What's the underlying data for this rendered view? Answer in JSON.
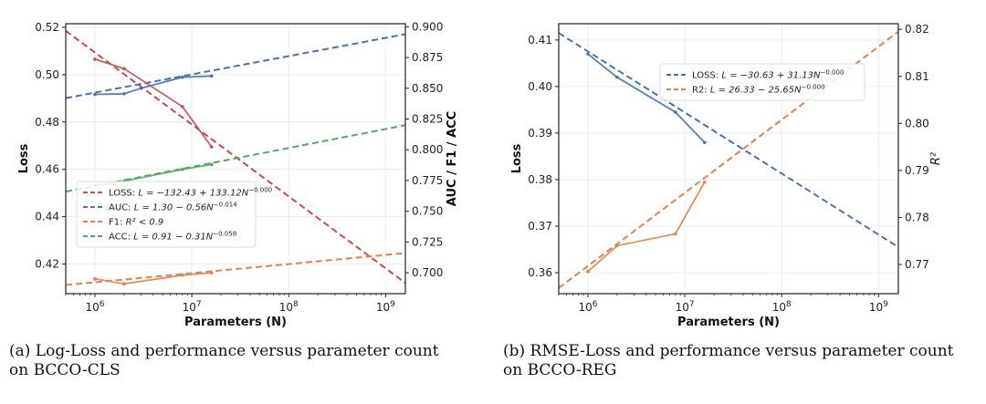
{
  "colors": {
    "red": "#c44e52",
    "blue": "#4c72b0",
    "orange": "#dd8452",
    "green": "#55a868",
    "axis": "#222222",
    "grid": "#ececec"
  },
  "captions": {
    "a_line1": "(a) Log-Loss and performance versus parameter count",
    "a_line2": "on BCCO-CLS",
    "b_line1": "(b) RMSE-Loss and performance versus parameter count",
    "b_line2": "on BCCO-REG"
  },
  "chart_data": [
    {
      "type": "line",
      "xlabel": "Parameters (N)",
      "ylabel_left": "Loss",
      "ylabel_right": "AUC / F1 / ACC",
      "xscale": "log",
      "xlim": [
        500000,
        1600000000
      ],
      "ylim_left": [
        0.4075,
        0.5215
      ],
      "ylim_right": [
        0.683,
        0.9025
      ],
      "x_ticks": [
        {
          "value": 1000000,
          "base": "10",
          "exp": "6"
        },
        {
          "value": 10000000,
          "base": "10",
          "exp": "7"
        },
        {
          "value": 100000000,
          "base": "10",
          "exp": "8"
        },
        {
          "value": 1000000000,
          "base": "10",
          "exp": "9"
        }
      ],
      "y_ticks_left": [
        "0.42",
        "0.44",
        "0.46",
        "0.48",
        "0.50",
        "0.52"
      ],
      "y_ticks_right": [
        "0.700",
        "0.725",
        "0.750",
        "0.775",
        "0.800",
        "0.825",
        "0.850",
        "0.875",
        "0.900"
      ],
      "legend_position": "center-left",
      "series": [
        {
          "name": "LOSS",
          "axis": "left",
          "color": "red",
          "x": [
            1000000,
            2000000,
            8000000,
            16000000
          ],
          "y": [
            0.5065,
            0.5025,
            0.4865,
            0.4695
          ],
          "fit": {
            "x0": 500000,
            "y0": 0.5185,
            "x1": 1600000000,
            "y1": 0.412
          },
          "legend_lhs": "LOSS: ",
          "legend_formula": "L = −132.43 + 133.12N",
          "legend_sup": "−0.000"
        },
        {
          "name": "AUC",
          "axis": "right",
          "color": "blue",
          "x": [
            1000000,
            2000000,
            3000000,
            8000000,
            16000000
          ],
          "y": [
            0.845,
            0.8455,
            0.85,
            0.859,
            0.86
          ],
          "fit": {
            "x0": 500000,
            "y0": 0.842,
            "x1": 1600000000,
            "y1": 0.894
          },
          "legend_lhs": "AUC: ",
          "legend_formula": "L = 1.30 − 0.56N",
          "legend_sup": "−0.014"
        },
        {
          "name": "F1",
          "axis": "right",
          "color": "orange",
          "x": [
            1000000,
            2000000,
            8000000,
            16000000
          ],
          "y": [
            0.695,
            0.691,
            0.698,
            0.7
          ],
          "fit": {
            "x0": 500000,
            "y0": 0.69,
            "x1": 1600000000,
            "y1": 0.716
          },
          "legend_lhs": "F1: ",
          "legend_formula": "R² < 0.9",
          "legend_sup": ""
        },
        {
          "name": "ACC",
          "axis": "right",
          "color": "green",
          "x": [
            1000000,
            2000000,
            8000000,
            16000000
          ],
          "y": [
            0.771,
            0.7745,
            0.784,
            0.788
          ],
          "fit": {
            "x0": 500000,
            "y0": 0.766,
            "x1": 1600000000,
            "y1": 0.82
          },
          "legend_lhs": "ACC: ",
          "legend_formula": "L = 0.91 − 0.31N",
          "legend_sup": "−0.058"
        }
      ]
    },
    {
      "type": "line",
      "xlabel": "Parameters (N)",
      "ylabel_left": "Loss",
      "ylabel_right": "R²",
      "xscale": "log",
      "xlim": [
        500000,
        1600000000
      ],
      "ylim_left": [
        0.3555,
        0.4135
      ],
      "ylim_right": [
        0.7638,
        0.8212
      ],
      "x_ticks": [
        {
          "value": 1000000,
          "base": "10",
          "exp": "6"
        },
        {
          "value": 10000000,
          "base": "10",
          "exp": "7"
        },
        {
          "value": 100000000,
          "base": "10",
          "exp": "8"
        },
        {
          "value": 1000000000,
          "base": "10",
          "exp": "9"
        }
      ],
      "y_ticks_left": [
        "0.36",
        "0.37",
        "0.38",
        "0.39",
        "0.40",
        "0.41"
      ],
      "y_ticks_right": [
        "0.77",
        "0.78",
        "0.79",
        "0.80",
        "0.81",
        "0.82"
      ],
      "legend_position": "top-center",
      "series": [
        {
          "name": "LOSS",
          "axis": "left",
          "color": "blue",
          "x": [
            1000000,
            2000000,
            8000000,
            16000000
          ],
          "y": [
            0.407,
            0.402,
            0.3945,
            0.388
          ],
          "fit": {
            "x0": 500000,
            "y0": 0.4115,
            "x1": 1600000000,
            "y1": 0.3655
          },
          "legend_lhs": "LOSS: ",
          "legend_formula": "L = −30.63 + 31.13N",
          "legend_sup": "−0.000"
        },
        {
          "name": "R2",
          "axis": "right",
          "color": "orange",
          "x": [
            1000000,
            2000000,
            8000000,
            16000000
          ],
          "y": [
            0.7685,
            0.774,
            0.7765,
            0.7875
          ],
          "fit": {
            "x0": 500000,
            "y0": 0.765,
            "x1": 1600000000,
            "y1": 0.8195
          },
          "legend_lhs": "R2: ",
          "legend_formula": "L = 26.33 − 25.65N",
          "legend_sup": "−0.000"
        }
      ]
    }
  ]
}
